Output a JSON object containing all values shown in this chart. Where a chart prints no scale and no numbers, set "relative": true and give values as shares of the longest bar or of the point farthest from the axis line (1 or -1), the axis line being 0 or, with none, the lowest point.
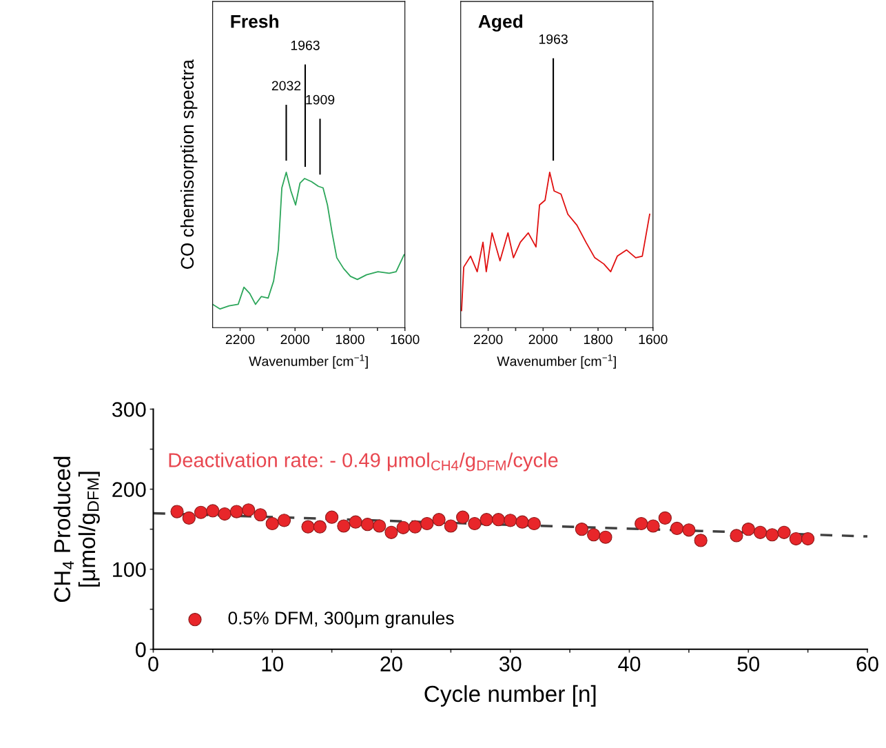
{
  "chart_data": [
    {
      "type": "line",
      "relative": true,
      "title": "Fresh",
      "ylabel": "CO chemisorption spectra",
      "xlabel": "Wavenumber [cm$^{−1}$]",
      "xlim": [
        2300,
        1600
      ],
      "xticks": [
        2200,
        {
          "value": 2100,
          "label": null
        },
        2000,
        {
          "value": 1900,
          "label": null
        },
        1800,
        {
          "value": 1700,
          "label": null
        },
        1600
      ],
      "series": [
        {
          "color": "#2ca65a",
          "x": [
            2300,
            2273,
            2240,
            2207,
            2186,
            2165,
            2144,
            2123,
            2098,
            2078,
            2061,
            2048,
            2032,
            2015,
            1998,
            1982,
            1965,
            1940,
            1915,
            1898,
            1882,
            1865,
            1848,
            1823,
            1798,
            1773,
            1740,
            1698,
            1657,
            1632,
            1603
          ],
          "values": [
            0.15,
            0.12,
            0.14,
            0.15,
            0.26,
            0.22,
            0.15,
            0.2,
            0.19,
            0.3,
            0.5,
            0.9,
            1.0,
            0.88,
            0.79,
            0.93,
            0.96,
            0.94,
            0.91,
            0.9,
            0.79,
            0.61,
            0.45,
            0.38,
            0.33,
            0.31,
            0.34,
            0.36,
            0.35,
            0.36,
            0.47
          ]
        }
      ],
      "ref_lines": [
        {
          "axis": "x",
          "value": 2032,
          "label": "2032"
        },
        {
          "axis": "x",
          "value": 1963,
          "label": "1963"
        },
        {
          "axis": "x",
          "value": 1909,
          "label": "1909"
        }
      ]
    },
    {
      "type": "line",
      "relative": true,
      "title": "Aged",
      "xlabel": "Wavenumber [cm$^{−1}$]",
      "xlim": [
        2300,
        1600
      ],
      "xticks": [
        2200,
        {
          "value": 2100,
          "label": null
        },
        2000,
        {
          "value": 1900,
          "label": null
        },
        1800,
        {
          "value": 1700,
          "label": null
        },
        1600
      ],
      "series": [
        {
          "color": "#e01010",
          "x": [
            2297,
            2289,
            2264,
            2240,
            2219,
            2207,
            2186,
            2157,
            2128,
            2108,
            2083,
            2054,
            2026,
            2013,
            1993,
            1976,
            1960,
            1935,
            1910,
            1877,
            1844,
            1812,
            1779,
            1754,
            1730,
            1696,
            1663,
            1639,
            1612
          ],
          "values": [
            0.11,
            0.39,
            0.46,
            0.36,
            0.55,
            0.36,
            0.61,
            0.43,
            0.61,
            0.45,
            0.55,
            0.61,
            0.52,
            0.79,
            0.82,
            1.0,
            0.88,
            0.86,
            0.73,
            0.66,
            0.55,
            0.45,
            0.41,
            0.36,
            0.46,
            0.5,
            0.45,
            0.46,
            0.73
          ]
        }
      ],
      "ref_lines": [
        {
          "axis": "x",
          "value": 1963,
          "label": "1963"
        }
      ]
    },
    {
      "type": "scatter",
      "xlabel": "Cycle number [n]",
      "ylabel": "CH$_{4}$ Produced\n[μmol/g$_{DFM}$]",
      "xlim": [
        0,
        60
      ],
      "ylim": [
        0,
        300
      ],
      "xticks": [
        0,
        {
          "value": 5,
          "label": null
        },
        10,
        {
          "value": 15,
          "label": null
        },
        20,
        {
          "value": 25,
          "label": null
        },
        30,
        {
          "value": 35,
          "label": null
        },
        40,
        {
          "value": 45,
          "label": null
        },
        50,
        {
          "value": 55,
          "label": null
        },
        60
      ],
      "yticks": [
        0,
        {
          "value": 50,
          "label": null
        },
        100,
        {
          "value": 150,
          "label": null
        },
        200,
        {
          "value": 250,
          "label": null
        },
        300
      ],
      "legend": "bottom left",
      "marker": "circle",
      "series": [
        {
          "type": "line",
          "line_style": "dashed",
          "marker": "none",
          "color": "#404040",
          "x": [
            0,
            60
          ],
          "values": [
            170,
            141
          ]
        },
        {
          "name": "0.5% DFM, 300μm granules",
          "color": "#e8262a",
          "x": [
            2,
            3,
            4,
            5,
            6,
            7,
            8,
            9,
            10,
            11,
            13,
            14,
            15,
            16,
            17,
            18,
            19,
            20,
            21,
            22,
            23,
            24,
            25,
            26,
            27,
            28,
            29,
            30,
            31,
            32,
            36,
            37,
            38,
            41,
            42,
            43,
            44,
            45,
            46,
            49,
            50,
            51,
            52,
            53,
            54,
            55
          ],
          "values": [
            172,
            164,
            171,
            173,
            169,
            172,
            174,
            168,
            157,
            161,
            153,
            153,
            165,
            154,
            159,
            156,
            154,
            146,
            152,
            153,
            157,
            162,
            154,
            165,
            157,
            162,
            162,
            161,
            159,
            157,
            150,
            143,
            140,
            157,
            154,
            164,
            151,
            149,
            136,
            142,
            150,
            146,
            143,
            146,
            138,
            138
          ]
        }
      ],
      "annotations": [
        "Deactivation rate: - 0.49 μmol$_{CH4}$/g$_{DFM}$/cycle"
      ]
    }
  ]
}
